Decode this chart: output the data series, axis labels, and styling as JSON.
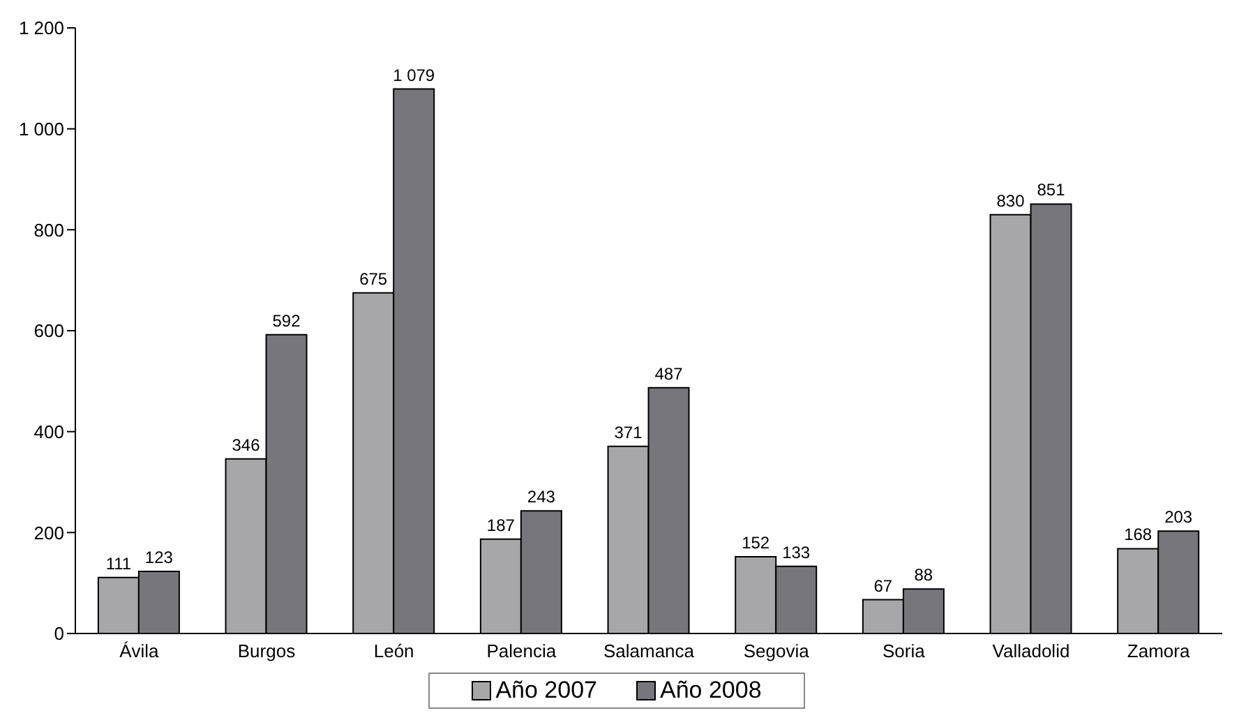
{
  "chart_data": {
    "type": "bar",
    "categories": [
      "Ávila",
      "Burgos",
      "León",
      "Palencia",
      "Salamanca",
      "Segovia",
      "Soria",
      "Valladolid",
      "Zamora"
    ],
    "series": [
      {
        "name": "Año 2007",
        "color": "#a7a7aa",
        "values": [
          111,
          346,
          675,
          187,
          371,
          152,
          67,
          830,
          168
        ],
        "value_labels": [
          "111",
          "346",
          "675",
          "187",
          "371",
          "152",
          "67",
          "830",
          "168"
        ]
      },
      {
        "name": "Año 2008",
        "color": "#77777b",
        "values": [
          123,
          592,
          1079,
          243,
          487,
          133,
          88,
          851,
          203
        ],
        "value_labels": [
          "123",
          "592",
          "1 079",
          "243",
          "487",
          "133",
          "88",
          "851",
          "203"
        ]
      }
    ],
    "ylim": [
      0,
      1200
    ],
    "yticks": [
      0,
      200,
      400,
      600,
      800,
      {
        "value": 1000,
        "label": "1 000"
      },
      {
        "value": 1200,
        "label": "1 200"
      }
    ],
    "grid": false,
    "legend": "bottom"
  }
}
